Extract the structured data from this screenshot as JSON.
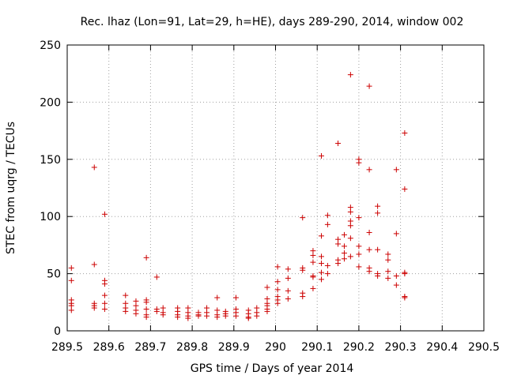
{
  "chart_data": {
    "type": "scatter",
    "title": "Rec. lhaz (Lon=91, Lat=29, h=HE), days 289-290, 2014, window 002",
    "xlabel": "GPS time / Days of year 2014",
    "ylabel": "STEC from uqrg / TECUs",
    "xlim": [
      289.5,
      290.5
    ],
    "ylim": [
      0,
      250
    ],
    "xticks": [
      289.5,
      289.6,
      289.7,
      289.8,
      289.9,
      290,
      290.1,
      290.2,
      290.3,
      290.4,
      290.5
    ],
    "xtick_labels": [
      "289.5",
      "289.6",
      "289.7",
      "289.8",
      "289.9",
      "290",
      "290.1",
      "290.2",
      "290.3",
      "290.4",
      "290.5"
    ],
    "yticks": [
      0,
      50,
      100,
      150,
      200,
      250
    ],
    "ytick_labels": [
      "0",
      "50",
      "100",
      "150",
      "200",
      "250"
    ],
    "grid": true,
    "marker": "plus",
    "color": "#cc0000",
    "series": [
      {
        "name": "STEC",
        "points": [
          [
            289.51,
            55
          ],
          [
            289.51,
            44
          ],
          [
            289.51,
            27
          ],
          [
            289.51,
            24
          ],
          [
            289.51,
            22
          ],
          [
            289.51,
            18
          ],
          [
            289.565,
            143
          ],
          [
            289.565,
            58
          ],
          [
            289.565,
            24
          ],
          [
            289.565,
            22
          ],
          [
            289.565,
            20
          ],
          [
            289.59,
            102
          ],
          [
            289.59,
            44
          ],
          [
            289.59,
            41
          ],
          [
            289.59,
            31
          ],
          [
            289.59,
            24
          ],
          [
            289.59,
            19
          ],
          [
            289.64,
            31
          ],
          [
            289.64,
            24
          ],
          [
            289.64,
            20
          ],
          [
            289.64,
            17
          ],
          [
            289.665,
            26
          ],
          [
            289.665,
            22
          ],
          [
            289.665,
            18
          ],
          [
            289.665,
            15
          ],
          [
            289.69,
            64
          ],
          [
            289.69,
            27
          ],
          [
            289.69,
            25
          ],
          [
            289.69,
            19
          ],
          [
            289.69,
            14
          ],
          [
            289.69,
            12
          ],
          [
            289.715,
            47
          ],
          [
            289.715,
            19
          ],
          [
            289.715,
            17
          ],
          [
            289.73,
            20
          ],
          [
            289.73,
            16
          ],
          [
            289.73,
            14
          ],
          [
            289.765,
            20
          ],
          [
            289.765,
            17
          ],
          [
            289.765,
            14
          ],
          [
            289.765,
            12
          ],
          [
            289.79,
            20
          ],
          [
            289.79,
            16
          ],
          [
            289.79,
            13
          ],
          [
            289.79,
            11
          ],
          [
            289.815,
            16
          ],
          [
            289.815,
            14
          ],
          [
            289.815,
            13
          ],
          [
            289.835,
            20
          ],
          [
            289.835,
            16
          ],
          [
            289.835,
            13
          ],
          [
            289.86,
            29
          ],
          [
            289.86,
            18
          ],
          [
            289.86,
            14
          ],
          [
            289.86,
            12
          ],
          [
            289.88,
            17
          ],
          [
            289.88,
            15
          ],
          [
            289.88,
            13
          ],
          [
            289.905,
            29
          ],
          [
            289.905,
            19
          ],
          [
            289.905,
            16
          ],
          [
            289.905,
            13
          ],
          [
            289.935,
            18
          ],
          [
            289.935,
            15
          ],
          [
            289.935,
            12
          ],
          [
            289.935,
            11
          ],
          [
            289.955,
            20
          ],
          [
            289.955,
            16
          ],
          [
            289.955,
            13
          ],
          [
            289.98,
            38
          ],
          [
            289.98,
            28
          ],
          [
            289.98,
            24
          ],
          [
            289.98,
            22
          ],
          [
            289.98,
            19
          ],
          [
            289.98,
            17
          ],
          [
            290.005,
            56
          ],
          [
            290.005,
            43
          ],
          [
            290.005,
            36
          ],
          [
            290.005,
            30
          ],
          [
            290.005,
            27
          ],
          [
            290.005,
            24
          ],
          [
            290.03,
            54
          ],
          [
            290.03,
            46
          ],
          [
            290.03,
            35
          ],
          [
            290.03,
            28
          ],
          [
            290.065,
            99
          ],
          [
            290.065,
            55
          ],
          [
            290.065,
            53
          ],
          [
            290.065,
            33
          ],
          [
            290.065,
            30
          ],
          [
            290.09,
            70
          ],
          [
            290.09,
            66
          ],
          [
            290.09,
            60
          ],
          [
            290.09,
            48
          ],
          [
            290.09,
            47
          ],
          [
            290.09,
            37
          ],
          [
            290.11,
            153
          ],
          [
            290.11,
            83
          ],
          [
            290.11,
            65
          ],
          [
            290.11,
            59
          ],
          [
            290.11,
            51
          ],
          [
            290.11,
            45
          ],
          [
            290.125,
            101
          ],
          [
            290.125,
            93
          ],
          [
            290.125,
            57
          ],
          [
            290.125,
            50
          ],
          [
            290.15,
            164
          ],
          [
            290.15,
            80
          ],
          [
            290.15,
            76
          ],
          [
            290.15,
            62
          ],
          [
            290.15,
            59
          ],
          [
            290.165,
            84
          ],
          [
            290.165,
            74
          ],
          [
            290.165,
            68
          ],
          [
            290.165,
            63
          ],
          [
            290.18,
            224
          ],
          [
            290.18,
            108
          ],
          [
            290.18,
            104
          ],
          [
            290.18,
            96
          ],
          [
            290.18,
            92
          ],
          [
            290.18,
            81
          ],
          [
            290.18,
            65
          ],
          [
            290.2,
            150
          ],
          [
            290.2,
            147
          ],
          [
            290.2,
            99
          ],
          [
            290.2,
            74
          ],
          [
            290.2,
            67
          ],
          [
            290.2,
            56
          ],
          [
            290.225,
            214
          ],
          [
            290.225,
            141
          ],
          [
            290.225,
            86
          ],
          [
            290.225,
            71
          ],
          [
            290.225,
            55
          ],
          [
            290.225,
            52
          ],
          [
            290.245,
            109
          ],
          [
            290.245,
            103
          ],
          [
            290.245,
            71
          ],
          [
            290.245,
            50
          ],
          [
            290.245,
            48
          ],
          [
            290.27,
            67
          ],
          [
            290.27,
            62
          ],
          [
            290.27,
            52
          ],
          [
            290.27,
            46
          ],
          [
            290.29,
            141
          ],
          [
            290.29,
            85
          ],
          [
            290.29,
            48
          ],
          [
            290.29,
            40
          ],
          [
            290.31,
            173
          ],
          [
            290.31,
            124
          ],
          [
            290.31,
            51
          ],
          [
            290.31,
            50
          ],
          [
            290.31,
            30
          ],
          [
            290.31,
            29
          ]
        ]
      }
    ]
  }
}
